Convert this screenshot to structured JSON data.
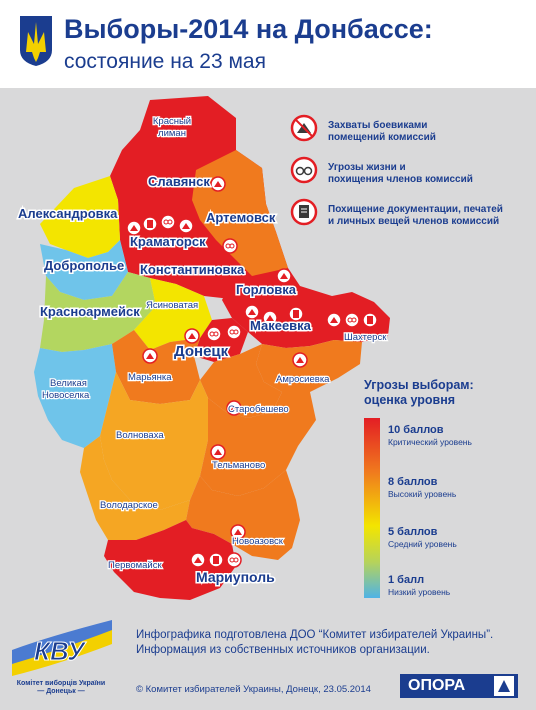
{
  "header": {
    "title": "Выборы-2014 на Донбассе:",
    "subtitle": "состояние на 23 мая"
  },
  "legend_icons": [
    {
      "icon": "house-capture-icon",
      "line1": "Захваты боевиками",
      "line2": "помещений комиссий"
    },
    {
      "icon": "handcuffs-threat-icon",
      "line1": "Угрозы жизни и",
      "line2": "похищения членов комиссий"
    },
    {
      "icon": "document-theft-icon",
      "line1": "Похищение документации, печатей",
      "line2": "и личных вещей членов комиссий"
    }
  ],
  "threat_scale": {
    "title1": "Угрозы выборам:",
    "title2": "оценка уровня",
    "levels": [
      {
        "score": "10 баллов",
        "desc": "Критический уровень"
      },
      {
        "score": "8 баллов",
        "desc": "Высокий уровень"
      },
      {
        "score": "5 баллов",
        "desc": "Средний уровень"
      },
      {
        "score": "1 балл",
        "desc": "Низкий уровень"
      }
    ]
  },
  "colors": {
    "critical": "#e31e24",
    "high": "#f07a1e",
    "medium": "#f5a623",
    "yellow": "#f3e500",
    "low": "#4fb3e6",
    "text": "#1b3d8f"
  },
  "map": {
    "labels": {
      "krasny_liman_1": "Красный",
      "krasny_liman_2": "лиман",
      "slavyansk": "Славянск",
      "artemovsk": "Артемовск",
      "aleksandrovka": "Александровка",
      "kramatorsk": "Краматорск",
      "dobropolye": "Доброполье",
      "konstantinovka": "Константиновка",
      "gorlovka": "Горловка",
      "krasnoarmeysk": "Красноармейск",
      "yasinovataya": "Ясиноватая",
      "makeevka": "Макеевка",
      "shakhtersk": "Шахтерск",
      "donetsk": "Донецк",
      "maryinka": "Марьянка",
      "amrosievka": "Амросиевка",
      "velikaya_novoselka_1": "Великая",
      "velikaya_novoselka_2": "Новоселка",
      "starobeshevo": "Старобешево",
      "volnovakha": "Волноваха",
      "telmanovo": "Тельманово",
      "volodarskoe": "Володарское",
      "novoazovsk": "Новоазовск",
      "pervomaysk": "Первомайск",
      "mariupol": "Мариуполь"
    }
  },
  "footer": {
    "credit1": "Инфографика подготовлена ДОО “Комитет избирателей Украины”.",
    "credit2": "Информация из собственных источников организации.",
    "copyright": "© Комитет избирателей Украины, Донецк, 23.05.2014",
    "kvu_line1": "Комітет виборців України",
    "kvu_line2": "— Донецьк —",
    "kvu_logo": "КВУ",
    "opora": "ОПОРА"
  }
}
